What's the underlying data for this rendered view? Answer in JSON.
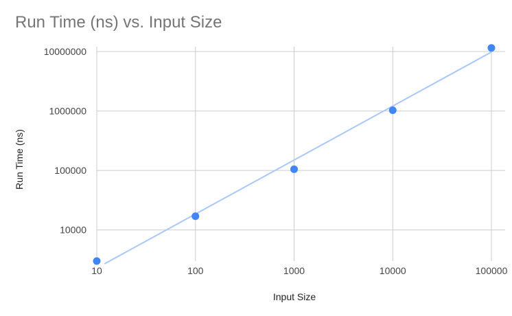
{
  "chart_data": {
    "type": "scatter",
    "title": "Run Time (ns) vs. Input Size",
    "xlabel": "Input Size",
    "ylabel": "Run Time (ns)",
    "x_scale": "log",
    "y_scale": "log",
    "xlim": [
      10,
      100000
    ],
    "ylim": [
      3000,
      10000000
    ],
    "x_ticks": [
      "10",
      "100",
      "1000",
      "10000",
      "100000"
    ],
    "y_ticks": [
      "10000",
      "100000",
      "1000000",
      "10000000"
    ],
    "grid": true,
    "legend": "none",
    "series": [
      {
        "points": [
          {
            "x": 10,
            "y": 3000
          },
          {
            "x": 100,
            "y": 17000
          },
          {
            "x": 1000,
            "y": 105000
          },
          {
            "x": 10000,
            "y": 1030000
          },
          {
            "x": 100000,
            "y": 11500000
          }
        ]
      }
    ],
    "trendline": {
      "type": "power",
      "from": {
        "x": 12,
        "y": 2700
      },
      "to": {
        "x": 100000,
        "y": 9800000
      }
    },
    "colors": {
      "points": "#4285f4",
      "trendline": "#a8c7fa",
      "grid": "#cccccc",
      "title": "#757575"
    }
  }
}
